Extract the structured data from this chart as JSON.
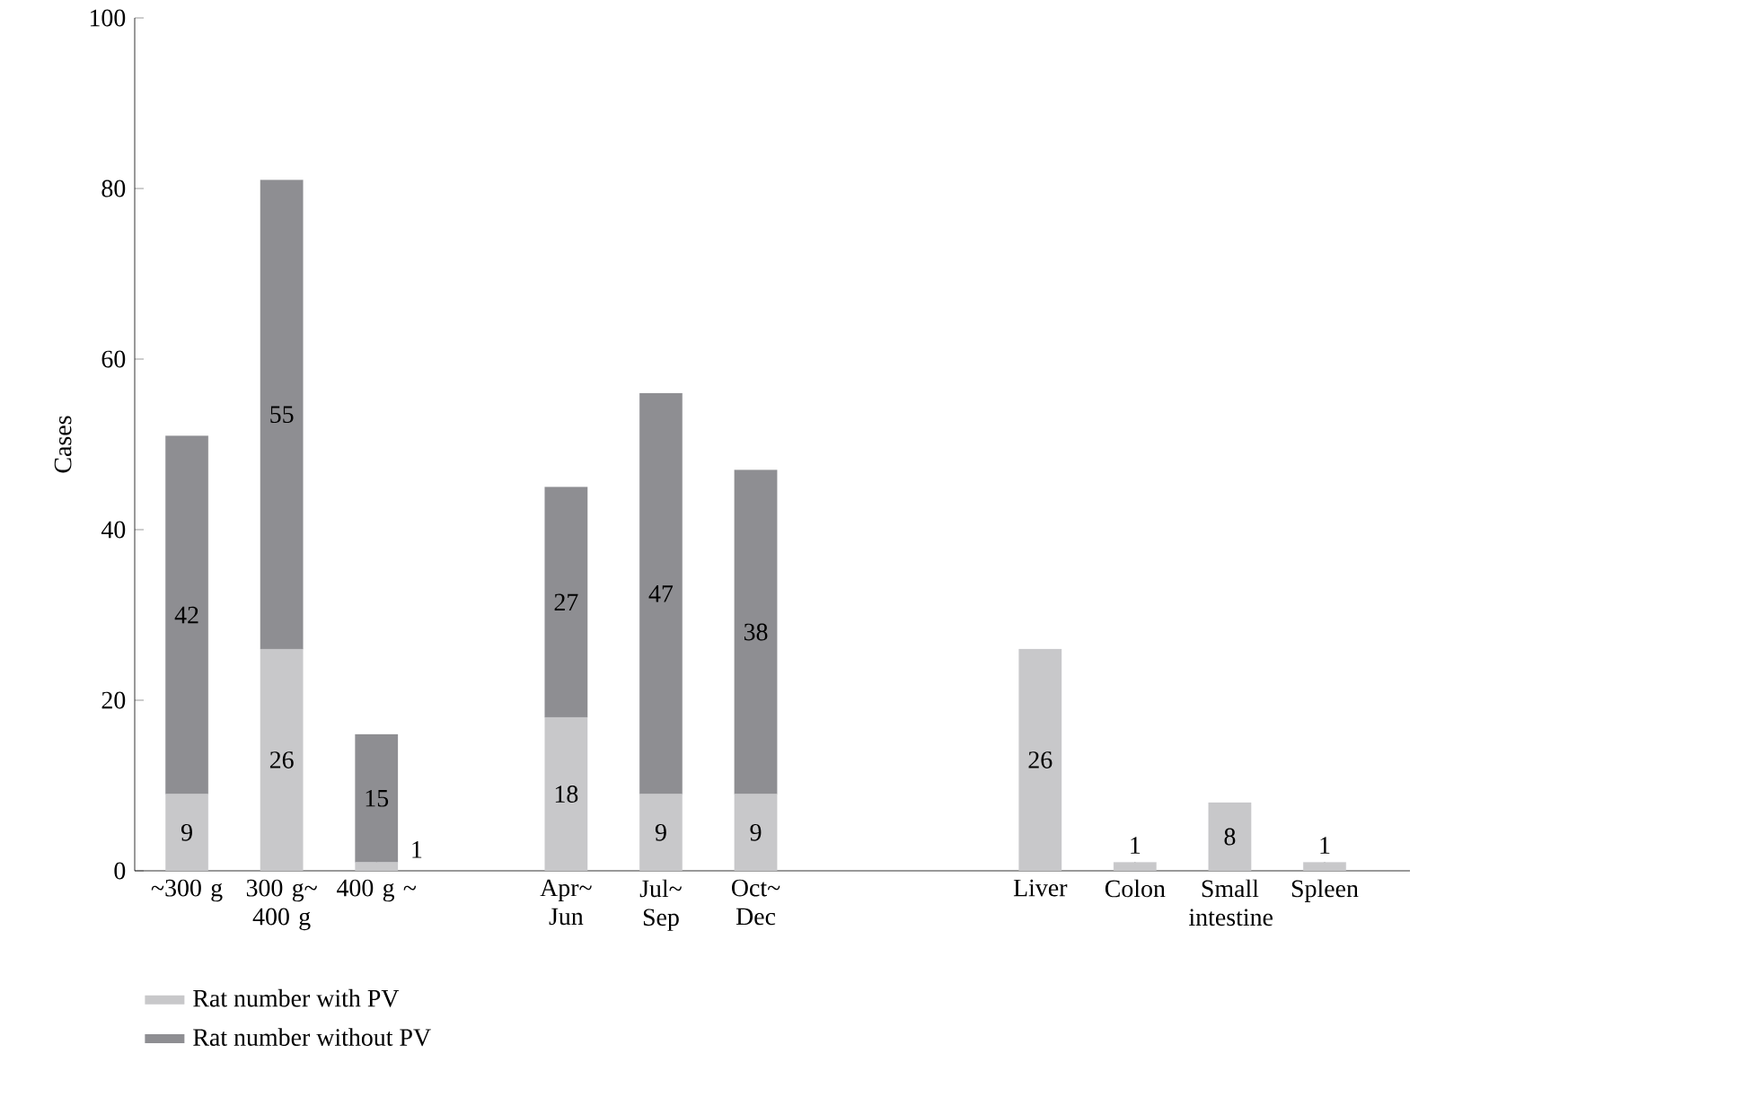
{
  "chart_data": {
    "type": "bar",
    "stacked": true,
    "ylabel": "Cases",
    "categories": [
      "~300 g",
      "300 g~ 400 g",
      "400 g ~",
      null,
      "Apr~ Jun",
      "Jul~ Sep",
      "Oct~ Dec",
      null,
      null,
      "Liver",
      "Colon",
      "Small intestine",
      "Spleen"
    ],
    "series": [
      {
        "name": "Rat number with PV",
        "color": "#c8c8ca",
        "values": [
          9,
          26,
          1,
          null,
          18,
          9,
          9,
          null,
          null,
          26,
          1,
          8,
          1
        ]
      },
      {
        "name": "Rat number without PV",
        "color": "#8e8e92",
        "values": [
          42,
          55,
          15,
          null,
          27,
          47,
          38,
          null,
          null,
          null,
          null,
          null,
          null
        ]
      }
    ],
    "ylim": [
      0,
      100
    ],
    "yticks": [
      0,
      20,
      40,
      60,
      80,
      100
    ],
    "data_labels": true,
    "legend": "bottom left",
    "grid": false
  }
}
